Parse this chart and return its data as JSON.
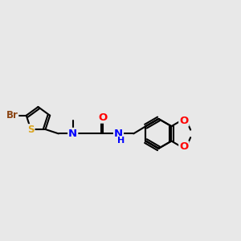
{
  "bg_color": "#e8e8e8",
  "bond_color": "#000000",
  "bond_width": 1.5,
  "atom_colors": {
    "Br": "#8B4513",
    "S": "#DAA520",
    "N": "#0000FF",
    "O": "#FF0000",
    "C": "#000000"
  },
  "font_size": 8.5,
  "fig_size": [
    3.0,
    3.0
  ],
  "dpi": 100,
  "xlim": [
    0,
    10
  ],
  "ylim": [
    2,
    8
  ]
}
